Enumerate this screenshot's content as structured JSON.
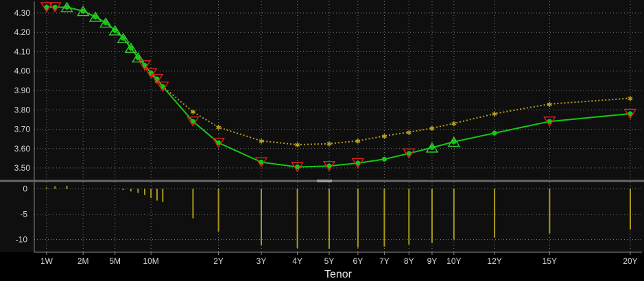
{
  "chart_data": [
    {
      "type": "line",
      "panel": "upper",
      "title": "",
      "xlabel": "Tenor",
      "ylabel": "",
      "x_scale": "sqrt",
      "ylim": [
        3.44,
        4.36
      ],
      "grid": true,
      "legend": "none",
      "y_ticks": [
        "3.50",
        "3.60",
        "3.70",
        "3.80",
        "3.90",
        "4.00",
        "4.10",
        "4.20",
        "4.30"
      ],
      "x_ticks": [
        {
          "label": "1W",
          "value": 0.019
        },
        {
          "label": "2M",
          "value": 0.167
        },
        {
          "label": "5M",
          "value": 0.417
        },
        {
          "label": "10M",
          "value": 0.833
        },
        {
          "label": "2Y",
          "value": 2
        },
        {
          "label": "3Y",
          "value": 3
        },
        {
          "label": "4Y",
          "value": 4
        },
        {
          "label": "5Y",
          "value": 5
        },
        {
          "label": "6Y",
          "value": 6
        },
        {
          "label": "7Y",
          "value": 7
        },
        {
          "label": "8Y",
          "value": 8
        },
        {
          "label": "9Y",
          "value": 9
        },
        {
          "label": "10Y",
          "value": 10
        },
        {
          "label": "12Y",
          "value": 12
        },
        {
          "label": "15Y",
          "value": 15
        },
        {
          "label": "20Y",
          "value": 20
        }
      ],
      "series": [
        {
          "color": "#b8a020",
          "style": "dotted",
          "marker": "star",
          "x": [
            0.019,
            0.04,
            0.083,
            0.167,
            0.25,
            0.333,
            0.417,
            0.5,
            0.583,
            0.667,
            0.75,
            0.833,
            0.917,
            1,
            1.5,
            2,
            3,
            4,
            5,
            6,
            7,
            8,
            9,
            10,
            12,
            15,
            20
          ],
          "y": [
            4.33,
            4.33,
            4.33,
            4.31,
            4.28,
            4.25,
            4.21,
            4.17,
            4.12,
            4.07,
            4.03,
            3.99,
            3.95,
            3.92,
            3.79,
            3.71,
            3.64,
            3.62,
            3.625,
            3.64,
            3.665,
            3.685,
            3.705,
            3.73,
            3.78,
            3.83,
            3.86
          ]
        },
        {
          "color": "#14c814",
          "style": "solid",
          "marker": "dot",
          "x": [
            0.019,
            0.04,
            0.083,
            0.167,
            0.25,
            0.333,
            0.417,
            0.5,
            0.583,
            0.667,
            0.75,
            0.833,
            0.917,
            1,
            1.5,
            2,
            3,
            4,
            5,
            6,
            7,
            8,
            9,
            10,
            12,
            15,
            20
          ],
          "y": [
            4.33,
            4.33,
            4.33,
            4.31,
            4.28,
            4.25,
            4.21,
            4.17,
            4.12,
            4.07,
            4.03,
            3.99,
            3.96,
            3.92,
            3.74,
            3.63,
            3.53,
            3.505,
            3.51,
            3.525,
            3.545,
            3.575,
            3.605,
            3.635,
            3.68,
            3.74,
            3.78
          ]
        }
      ],
      "markers": [
        {
          "shape": "triangle-down",
          "color": "#e02020",
          "x": [
            0.019,
            0.04,
            0.75,
            0.833,
            0.917,
            1,
            1.5,
            2,
            3,
            4,
            5,
            6,
            8,
            15,
            20
          ],
          "y": [
            4.33,
            4.33,
            4.03,
            3.99,
            3.96,
            3.92,
            3.74,
            3.63,
            3.53,
            3.505,
            3.51,
            3.525,
            3.575,
            3.74,
            3.78
          ]
        },
        {
          "shape": "triangle-up",
          "color": "#30d030",
          "x": [
            0.083,
            0.167,
            0.25,
            0.333,
            0.417,
            0.5,
            0.583,
            0.667,
            9,
            10
          ],
          "y": [
            4.33,
            4.31,
            4.28,
            4.25,
            4.21,
            4.17,
            4.12,
            4.07,
            3.605,
            3.635
          ]
        }
      ]
    },
    {
      "type": "bar",
      "panel": "lower",
      "title": "",
      "xlabel": "Tenor",
      "ylabel": "",
      "x_scale": "sqrt",
      "ylim": [
        -12.5,
        1.3
      ],
      "grid": true,
      "legend": "none",
      "y_ticks": [
        "0",
        "-5",
        "-10"
      ],
      "color": "#a89a18",
      "x": [
        0.019,
        0.04,
        0.083,
        0.5,
        0.583,
        0.667,
        0.75,
        0.833,
        0.917,
        1,
        1.5,
        2,
        3,
        4,
        5,
        6,
        7,
        8,
        9,
        10,
        12,
        15,
        20
      ],
      "values": [
        0.3,
        0.5,
        0.6,
        -0.2,
        -0.5,
        -0.8,
        -1.2,
        -1.8,
        -2.3,
        -2.6,
        -5.8,
        -8.4,
        -11.1,
        -11.7,
        -11.8,
        -11.6,
        -11.4,
        -11.0,
        -10.6,
        -10.0,
        -9.6,
        -8.8,
        -8.0
      ]
    }
  ]
}
